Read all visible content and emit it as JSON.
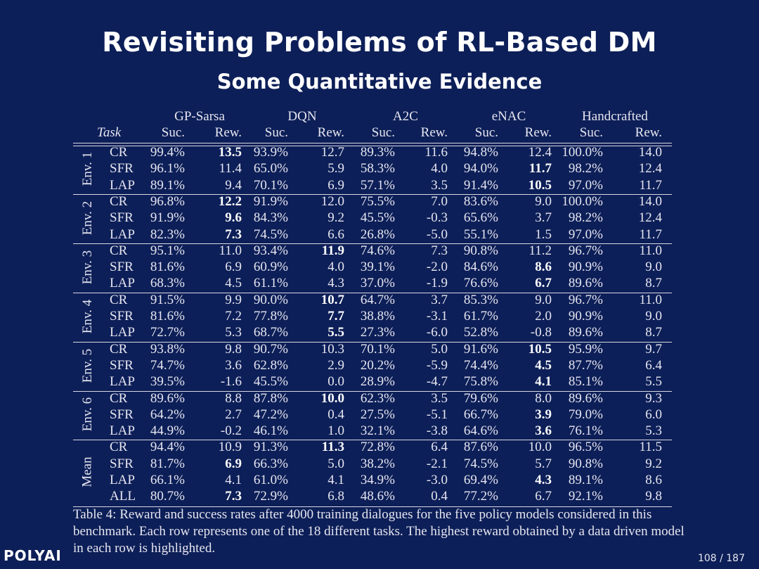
{
  "slide": {
    "title": "Revisiting Problems of RL-Based DM",
    "subtitle": "Some Quantitative Evidence",
    "logo": "POLYAI",
    "page_number": "108 / 187"
  },
  "table": {
    "task_header": "Task",
    "models": [
      "GP-Sarsa",
      "DQN",
      "A2C",
      "eNAC",
      "Handcrafted"
    ],
    "sub_headers": [
      "Suc.",
      "Rew."
    ],
    "groups": [
      {
        "label": "Env. 1",
        "rows": [
          {
            "task": "CR",
            "cells": [
              "99.4%",
              "13.5",
              "93.9%",
              "12.7",
              "89.3%",
              "11.6",
              "94.8%",
              "12.4",
              "100.0%",
              "14.0"
            ],
            "bold": 1
          },
          {
            "task": "SFR",
            "cells": [
              "96.1%",
              "11.4",
              "65.0%",
              "5.9",
              "58.3%",
              "4.0",
              "94.0%",
              "11.7",
              "98.2%",
              "12.4"
            ],
            "bold": 7
          },
          {
            "task": "LAP",
            "cells": [
              "89.1%",
              "9.4",
              "70.1%",
              "6.9",
              "57.1%",
              "3.5",
              "91.4%",
              "10.5",
              "97.0%",
              "11.7"
            ],
            "bold": 7
          }
        ]
      },
      {
        "label": "Env. 2",
        "rows": [
          {
            "task": "CR",
            "cells": [
              "96.8%",
              "12.2",
              "91.9%",
              "12.0",
              "75.5%",
              "7.0",
              "83.6%",
              "9.0",
              "100.0%",
              "14.0"
            ],
            "bold": 1
          },
          {
            "task": "SFR",
            "cells": [
              "91.9%",
              "9.6",
              "84.3%",
              "9.2",
              "45.5%",
              "-0.3",
              "65.6%",
              "3.7",
              "98.2%",
              "12.4"
            ],
            "bold": 1
          },
          {
            "task": "LAP",
            "cells": [
              "82.3%",
              "7.3",
              "74.5%",
              "6.6",
              "26.8%",
              "-5.0",
              "55.1%",
              "1.5",
              "97.0%",
              "11.7"
            ],
            "bold": 1
          }
        ]
      },
      {
        "label": "Env. 3",
        "rows": [
          {
            "task": "CR",
            "cells": [
              "95.1%",
              "11.0",
              "93.4%",
              "11.9",
              "74.6%",
              "7.3",
              "90.8%",
              "11.2",
              "96.7%",
              "11.0"
            ],
            "bold": 3
          },
          {
            "task": "SFR",
            "cells": [
              "81.6%",
              "6.9",
              "60.9%",
              "4.0",
              "39.1%",
              "-2.0",
              "84.6%",
              "8.6",
              "90.9%",
              "9.0"
            ],
            "bold": 7
          },
          {
            "task": "LAP",
            "cells": [
              "68.3%",
              "4.5",
              "61.1%",
              "4.3",
              "37.0%",
              "-1.9",
              "76.6%",
              "6.7",
              "89.6%",
              "8.7"
            ],
            "bold": 7
          }
        ]
      },
      {
        "label": "Env. 4",
        "rows": [
          {
            "task": "CR",
            "cells": [
              "91.5%",
              "9.9",
              "90.0%",
              "10.7",
              "64.7%",
              "3.7",
              "85.3%",
              "9.0",
              "96.7%",
              "11.0"
            ],
            "bold": 3
          },
          {
            "task": "SFR",
            "cells": [
              "81.6%",
              "7.2",
              "77.8%",
              "7.7",
              "38.8%",
              "-3.1",
              "61.7%",
              "2.0",
              "90.9%",
              "9.0"
            ],
            "bold": 3
          },
          {
            "task": "LAP",
            "cells": [
              "72.7%",
              "5.3",
              "68.7%",
              "5.5",
              "27.3%",
              "-6.0",
              "52.8%",
              "-0.8",
              "89.6%",
              "8.7"
            ],
            "bold": 3
          }
        ]
      },
      {
        "label": "Env. 5",
        "rows": [
          {
            "task": "CR",
            "cells": [
              "93.8%",
              "9.8",
              "90.7%",
              "10.3",
              "70.1%",
              "5.0",
              "91.6%",
              "10.5",
              "95.9%",
              "9.7"
            ],
            "bold": 7
          },
          {
            "task": "SFR",
            "cells": [
              "74.7%",
              "3.6",
              "62.8%",
              "2.9",
              "20.2%",
              "-5.9",
              "74.4%",
              "4.5",
              "87.7%",
              "6.4"
            ],
            "bold": 7
          },
          {
            "task": "LAP",
            "cells": [
              "39.5%",
              "-1.6",
              "45.5%",
              "0.0",
              "28.9%",
              "-4.7",
              "75.8%",
              "4.1",
              "85.1%",
              "5.5"
            ],
            "bold": 7
          }
        ]
      },
      {
        "label": "Env. 6",
        "rows": [
          {
            "task": "CR",
            "cells": [
              "89.6%",
              "8.8",
              "87.8%",
              "10.0",
              "62.3%",
              "3.5",
              "79.6%",
              "8.0",
              "89.6%",
              "9.3"
            ],
            "bold": 3
          },
          {
            "task": "SFR",
            "cells": [
              "64.2%",
              "2.7",
              "47.2%",
              "0.4",
              "27.5%",
              "-5.1",
              "66.7%",
              "3.9",
              "79.0%",
              "6.0"
            ],
            "bold": 7
          },
          {
            "task": "LAP",
            "cells": [
              "44.9%",
              "-0.2",
              "46.1%",
              "1.0",
              "32.1%",
              "-3.8",
              "64.6%",
              "3.6",
              "76.1%",
              "5.3"
            ],
            "bold": 7
          }
        ]
      },
      {
        "label": "Mean",
        "rows": [
          {
            "task": "CR",
            "cells": [
              "94.4%",
              "10.9",
              "91.3%",
              "11.3",
              "72.8%",
              "6.4",
              "87.6%",
              "10.0",
              "96.5%",
              "11.5"
            ],
            "bold": 3
          },
          {
            "task": "SFR",
            "cells": [
              "81.7%",
              "6.9",
              "66.3%",
              "5.0",
              "38.2%",
              "-2.1",
              "74.5%",
              "5.7",
              "90.8%",
              "9.2"
            ],
            "bold": 1
          },
          {
            "task": "LAP",
            "cells": [
              "66.1%",
              "4.1",
              "61.0%",
              "4.1",
              "34.9%",
              "-3.0",
              "69.4%",
              "4.3",
              "89.1%",
              "8.6"
            ],
            "bold": 7
          },
          {
            "task": "ALL",
            "cells": [
              "80.7%",
              "7.3",
              "72.9%",
              "6.8",
              "48.6%",
              "0.4",
              "77.2%",
              "6.7",
              "92.1%",
              "9.8"
            ],
            "bold": 1
          }
        ]
      }
    ],
    "caption": "Table 4: Reward and success rates after 4000 training dialogues for the five policy models considered in this benchmark. Each row represents one of the 18 different tasks. The highest reward obtained by a data driven model in each row is highlighted."
  }
}
